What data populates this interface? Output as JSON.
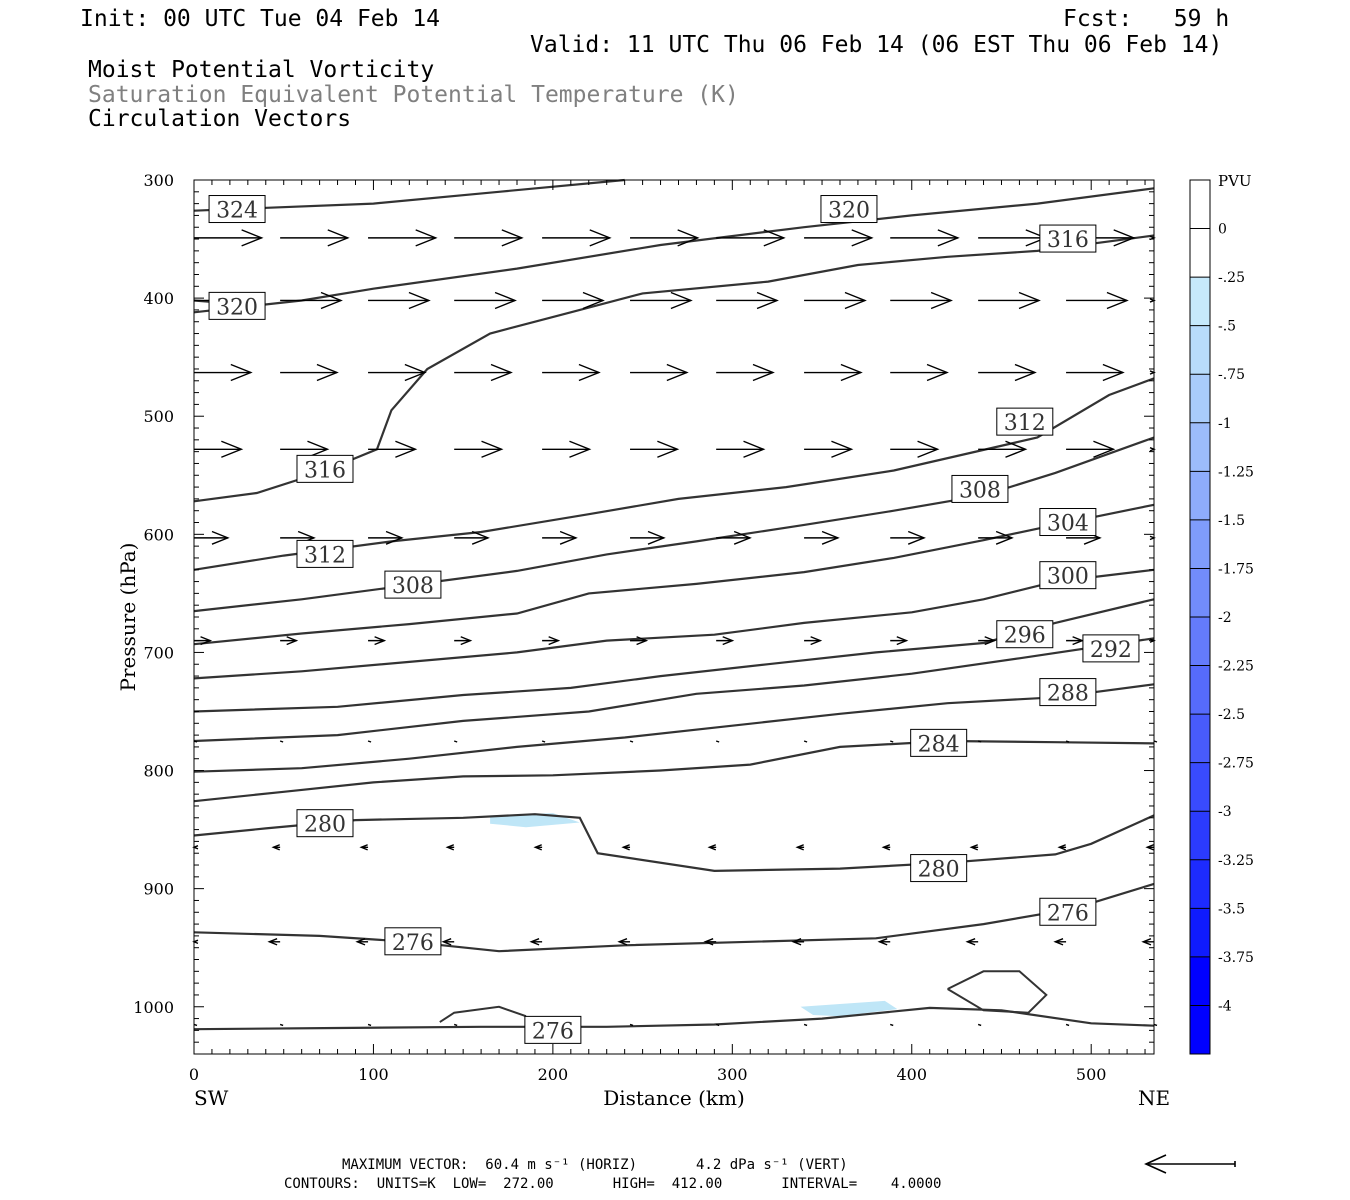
{
  "header": {
    "init": "Init: 00 UTC Tue 04 Feb 14",
    "fcst": "Fcst:   59 h",
    "valid": "Valid: 11 UTC Thu 06 Feb 14 (06 EST Thu 06 Feb 14)",
    "field1": "Moist Potential Vorticity",
    "field2": "Saturation Equivalent Potential Temperature (K)",
    "field3": "Circulation Vectors"
  },
  "footer": {
    "max_vector": "MAXIMUM VECTOR:  60.4 m s⁻¹ (HORIZ)       4.2 dPa s⁻¹ (VERT)",
    "contours": "CONTOURS:  UNITS=K  LOW=  272.00       HIGH=  412.00       INTERVAL=    4.0000"
  },
  "colors": {
    "contour": "#333333",
    "pv_light": "#bfe6f7",
    "colorbar": [
      "#ffffff",
      "#ffffff",
      "#c6e9fb",
      "#b8dcfb",
      "#a9ccfb",
      "#9cbcfb",
      "#8eacfb",
      "#7f9cfb",
      "#728cfb",
      "#647bfc",
      "#566bfc",
      "#485bfc",
      "#394bfd",
      "#2b3bfd",
      "#1d2bfe",
      "#0f1bfe",
      "#0000ff"
    ]
  },
  "chart_data": {
    "type": "contour",
    "xlabel": "Distance (km)",
    "ylabel": "Pressure (hPa)",
    "x_end_labels": [
      "SW",
      "NE"
    ],
    "xlim": [
      0,
      535
    ],
    "ylim": [
      1040,
      300
    ],
    "x_ticks": [
      0,
      100,
      200,
      300,
      400,
      500
    ],
    "y_ticks": [
      300,
      400,
      500,
      600,
      700,
      800,
      900,
      1000
    ],
    "colorbar": {
      "title": "PVU",
      "levels": [
        "0",
        "-.25",
        "-.5",
        "-.75",
        "-1",
        "-1.25",
        "-1.5",
        "-1.75",
        "-2",
        "-2.25",
        "-2.5",
        "-2.75",
        "-3",
        "-3.25",
        "-3.5",
        "-3.75",
        "-4"
      ]
    },
    "theta_e_contours": [
      {
        "label": "324",
        "points": [
          [
            0,
            326
          ],
          [
            100,
            320
          ],
          [
            170,
            310
          ],
          [
            240,
            300
          ]
        ],
        "label_at": [
          24,
          325
        ]
      },
      {
        "label": "320",
        "points": [
          [
            0,
            412
          ],
          [
            60,
            402
          ],
          [
            100,
            392
          ],
          [
            180,
            375
          ],
          [
            260,
            355
          ],
          [
            340,
            340
          ],
          [
            400,
            330
          ],
          [
            470,
            320
          ],
          [
            535,
            307
          ]
        ],
        "label_at": [
          365,
          325
        ]
      },
      {
        "label": "320",
        "points": [
          [
            25,
            405
          ],
          [
            0,
            402
          ]
        ],
        "label_at": [
          24,
          407
        ]
      },
      {
        "label": "316",
        "points": [
          [
            0,
            572
          ],
          [
            35,
            565
          ],
          [
            70,
            548
          ],
          [
            102,
            528
          ],
          [
            110,
            495
          ],
          [
            130,
            460
          ],
          [
            165,
            430
          ],
          [
            210,
            412
          ],
          [
            250,
            396
          ],
          [
            320,
            386
          ],
          [
            370,
            372
          ],
          [
            420,
            365
          ],
          [
            470,
            360
          ],
          [
            535,
            347
          ]
        ],
        "label_at": [
          73,
          545
        ]
      },
      {
        "label": "312",
        "points": [
          [
            0,
            630
          ],
          [
            50,
            618
          ],
          [
            110,
            606
          ],
          [
            160,
            598
          ],
          [
            220,
            583
          ],
          [
            270,
            570
          ],
          [
            330,
            560
          ],
          [
            390,
            546
          ],
          [
            430,
            532
          ],
          [
            470,
            518
          ],
          [
            510,
            482
          ],
          [
            535,
            468
          ]
        ],
        "label_at": [
          73,
          617
        ]
      },
      {
        "label": "308",
        "points": [
          [
            0,
            665
          ],
          [
            60,
            655
          ],
          [
            120,
            643
          ],
          [
            180,
            631
          ],
          [
            230,
            617
          ],
          [
            280,
            606
          ],
          [
            340,
            592
          ],
          [
            390,
            580
          ],
          [
            440,
            567
          ],
          [
            480,
            548
          ],
          [
            535,
            518
          ]
        ],
        "label_at": [
          122,
          643
        ]
      },
      {
        "label": "304",
        "points": [
          [
            0,
            693
          ],
          [
            60,
            684
          ],
          [
            120,
            676
          ],
          [
            180,
            667
          ],
          [
            220,
            650
          ],
          [
            280,
            642
          ],
          [
            340,
            632
          ],
          [
            390,
            620
          ],
          [
            440,
            605
          ],
          [
            480,
            592
          ],
          [
            535,
            575
          ]
        ],
        "label_at": [
          487,
          590
        ]
      },
      {
        "label": "300",
        "points": [
          [
            0,
            722
          ],
          [
            60,
            716
          ],
          [
            120,
            708
          ],
          [
            180,
            700
          ],
          [
            230,
            690
          ],
          [
            290,
            685
          ],
          [
            340,
            675
          ],
          [
            400,
            666
          ],
          [
            440,
            655
          ],
          [
            480,
            640
          ],
          [
            535,
            630
          ]
        ],
        "label_at": [
          487,
          635
        ]
      },
      {
        "label": "296",
        "points": [
          [
            0,
            750
          ],
          [
            80,
            746
          ],
          [
            150,
            736
          ],
          [
            210,
            730
          ],
          [
            260,
            720
          ],
          [
            320,
            710
          ],
          [
            380,
            700
          ],
          [
            440,
            692
          ],
          [
            480,
            675
          ],
          [
            535,
            655
          ]
        ],
        "label_at": [
          463,
          685
        ]
      },
      {
        "label": "292",
        "points": [
          [
            0,
            775
          ],
          [
            80,
            770
          ],
          [
            150,
            758
          ],
          [
            220,
            750
          ],
          [
            280,
            735
          ],
          [
            340,
            728
          ],
          [
            400,
            718
          ],
          [
            460,
            705
          ],
          [
            535,
            688
          ]
        ],
        "label_at": [
          511,
          697
        ]
      },
      {
        "label": "288",
        "points": [
          [
            0,
            801
          ],
          [
            60,
            798
          ],
          [
            120,
            790
          ],
          [
            180,
            780
          ],
          [
            240,
            772
          ],
          [
            300,
            762
          ],
          [
            360,
            752
          ],
          [
            420,
            743
          ],
          [
            480,
            738
          ],
          [
            535,
            727
          ]
        ],
        "label_at": [
          487,
          734
        ]
      },
      {
        "label": "284",
        "points": [
          [
            0,
            826
          ],
          [
            50,
            818
          ],
          [
            100,
            810
          ],
          [
            150,
            805
          ],
          [
            200,
            804
          ],
          [
            260,
            800
          ],
          [
            310,
            795
          ],
          [
            360,
            780
          ],
          [
            420,
            775
          ],
          [
            480,
            776
          ],
          [
            535,
            777
          ]
        ],
        "label_at": [
          415,
          777
        ]
      },
      {
        "label": "280",
        "points": [
          [
            0,
            855
          ],
          [
            40,
            849
          ],
          [
            90,
            842
          ],
          [
            150,
            840
          ],
          [
            190,
            837
          ],
          [
            215,
            840
          ],
          [
            225,
            870
          ],
          [
            290,
            885
          ],
          [
            360,
            883
          ],
          [
            420,
            878
          ],
          [
            480,
            871
          ],
          [
            500,
            862
          ],
          [
            535,
            838
          ]
        ],
        "label_at": [
          73,
          845
        ]
      },
      {
        "label": "276",
        "points": [
          [
            0,
            937
          ],
          [
            70,
            940
          ],
          [
            120,
            945
          ],
          [
            170,
            953
          ],
          [
            240,
            948
          ],
          [
            310,
            945
          ],
          [
            380,
            942
          ],
          [
            440,
            930
          ],
          [
            490,
            917
          ],
          [
            535,
            896
          ]
        ],
        "label_at": [
          122,
          945
        ]
      },
      {
        "label": "276",
        "points": [
          [
            0,
            1019
          ],
          [
            80,
            1018
          ],
          [
            160,
            1017
          ],
          [
            230,
            1017
          ],
          [
            290,
            1015
          ],
          [
            350,
            1010
          ],
          [
            410,
            1001
          ],
          [
            450,
            1003
          ],
          [
            500,
            1014
          ],
          [
            535,
            1016
          ]
        ],
        "label_at": [
          200,
          1020
        ]
      }
    ],
    "contour_label_extra": [
      {
        "label": "316",
        "at": [
          487,
          350
        ]
      },
      {
        "label": "312",
        "at": [
          463,
          505
        ]
      },
      {
        "label": "308",
        "at": [
          438,
          562
        ]
      },
      {
        "label": "280",
        "at": [
          415,
          883
        ]
      },
      {
        "label": "276",
        "at": [
          487,
          920
        ]
      }
    ],
    "small_loops": [
      {
        "points": [
          [
            137,
            1013
          ],
          [
            145,
            1005
          ],
          [
            170,
            1000
          ],
          [
            185,
            1008
          ]
        ]
      },
      {
        "points": [
          [
            420,
            985
          ],
          [
            440,
            970
          ],
          [
            460,
            970
          ],
          [
            475,
            990
          ],
          [
            465,
            1005
          ],
          [
            440,
            1003
          ],
          [
            420,
            985
          ]
        ]
      }
    ],
    "pv_regions": [
      {
        "value": "-.25",
        "points": [
          [
            165,
            838
          ],
          [
            200,
            836
          ],
          [
            215,
            844
          ],
          [
            185,
            848
          ],
          [
            165,
            845
          ]
        ]
      },
      {
        "value": "-.25",
        "points": [
          [
            338,
            1000
          ],
          [
            385,
            995
          ],
          [
            392,
            1002
          ],
          [
            360,
            1008
          ],
          [
            345,
            1007
          ]
        ]
      }
    ],
    "vector_rows": [
      {
        "p": 349,
        "u": 0.5
      },
      {
        "p": 402,
        "u": 0.45
      },
      {
        "p": 463,
        "u": 0.42
      },
      {
        "p": 528,
        "u": 0.35
      },
      {
        "p": 603,
        "u": 0.25
      },
      {
        "p": 690,
        "u": 0.12
      },
      {
        "p": 775,
        "u": -0.02
      },
      {
        "p": 865,
        "u": -0.05
      },
      {
        "p": 945,
        "u": -0.08
      },
      {
        "p": 1015,
        "u": -0.01
      }
    ],
    "vector_x": [
      0,
      48,
      97,
      145,
      194,
      243,
      291,
      340,
      388,
      437,
      486,
      535
    ],
    "reference_vector": "left"
  }
}
